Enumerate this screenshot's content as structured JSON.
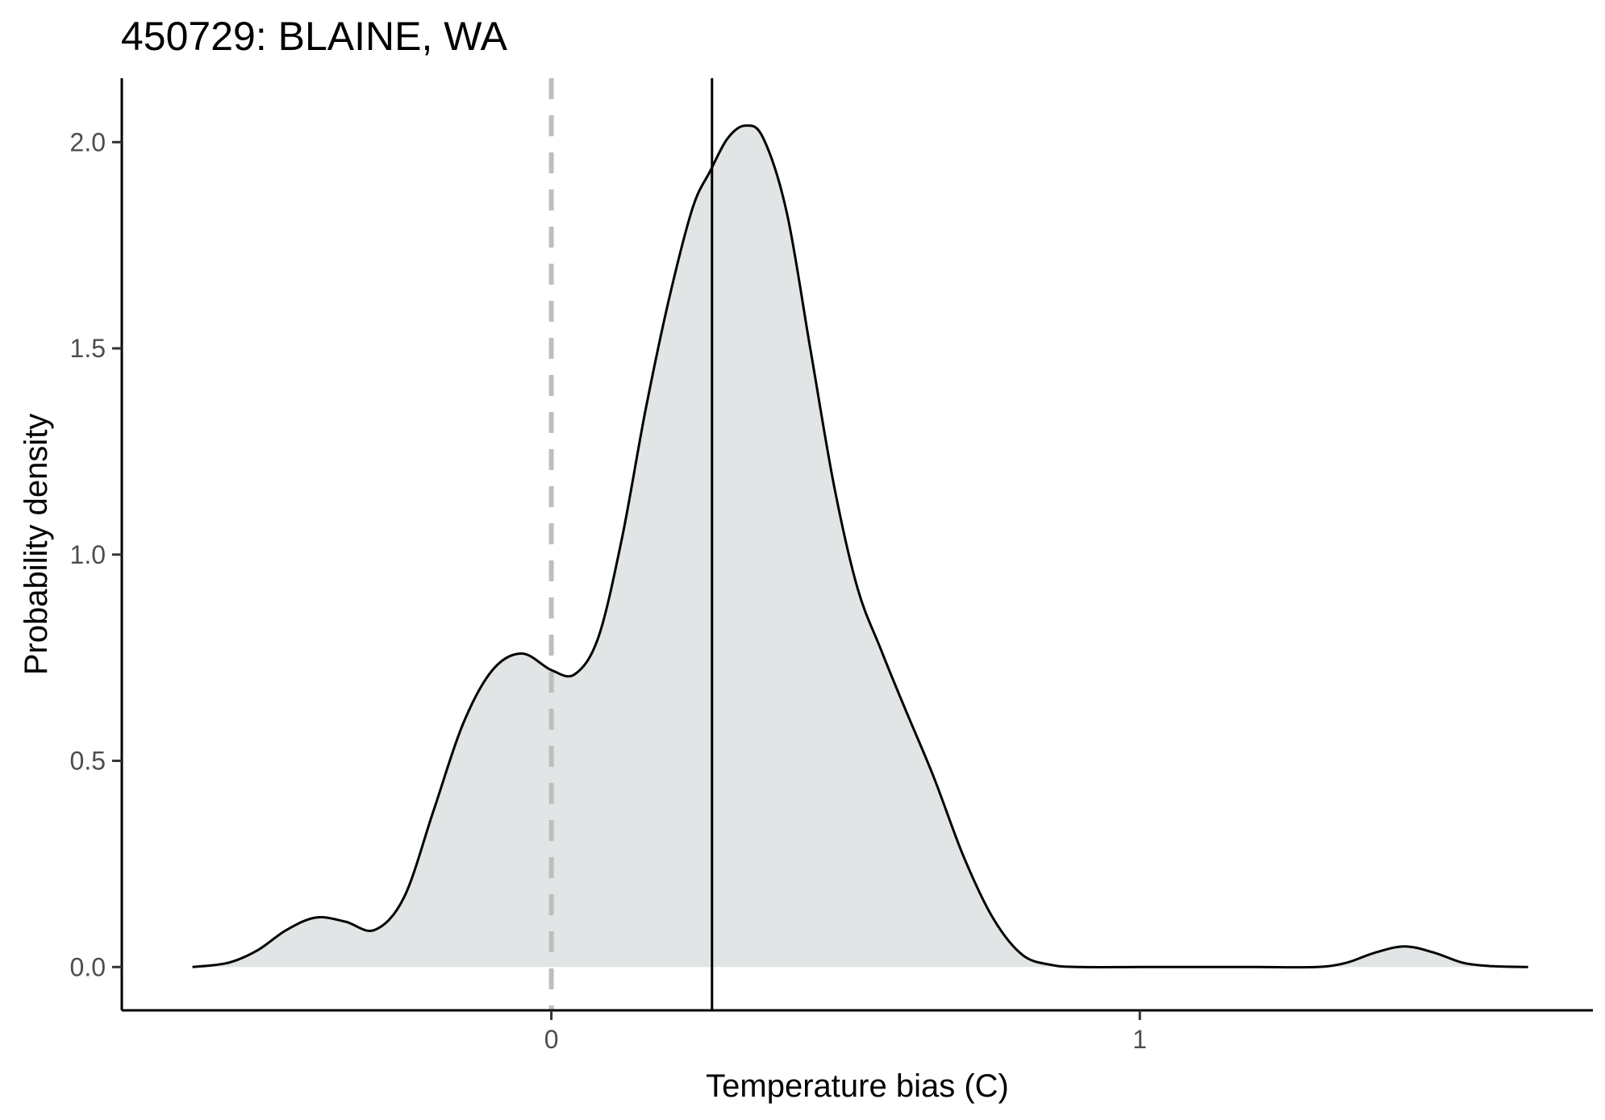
{
  "chart_data": {
    "type": "area",
    "title": "450729: BLAINE, WA",
    "xlabel": "Temperature bias (C)",
    "ylabel": "Probability density",
    "xlim": [
      -0.73,
      1.77
    ],
    "ylim": [
      -0.105,
      2.155
    ],
    "x_ticks": [
      0,
      1
    ],
    "x_tick_labels": [
      "0",
      "1"
    ],
    "y_ticks": [
      0.0,
      0.5,
      1.0,
      1.5,
      2.0
    ],
    "y_tick_labels": [
      "0.0",
      "0.5",
      "1.0",
      "1.5",
      "2.0"
    ],
    "grid": false,
    "legend": "none",
    "reference_lines": [
      {
        "x": 0,
        "style": "dashed",
        "color": "#bebebe"
      },
      {
        "x": 0.273,
        "style": "solid",
        "color": "#000000"
      }
    ],
    "series": [
      {
        "fill": "#e1e5e6",
        "stroke": "#000000",
        "points": [
          [
            -0.61,
            0.0
          ],
          [
            -0.55,
            0.01
          ],
          [
            -0.5,
            0.04
          ],
          [
            -0.45,
            0.09
          ],
          [
            -0.4,
            0.12
          ],
          [
            -0.35,
            0.11
          ],
          [
            -0.3,
            0.09
          ],
          [
            -0.25,
            0.17
          ],
          [
            -0.2,
            0.38
          ],
          [
            -0.15,
            0.59
          ],
          [
            -0.1,
            0.72
          ],
          [
            -0.05,
            0.76
          ],
          [
            0.0,
            0.72
          ],
          [
            0.04,
            0.71
          ],
          [
            0.08,
            0.8
          ],
          [
            0.12,
            1.04
          ],
          [
            0.16,
            1.35
          ],
          [
            0.2,
            1.62
          ],
          [
            0.24,
            1.84
          ],
          [
            0.27,
            1.93
          ],
          [
            0.3,
            2.01
          ],
          [
            0.33,
            2.04
          ],
          [
            0.36,
            2.01
          ],
          [
            0.4,
            1.83
          ],
          [
            0.44,
            1.5
          ],
          [
            0.48,
            1.17
          ],
          [
            0.52,
            0.92
          ],
          [
            0.56,
            0.77
          ],
          [
            0.6,
            0.63
          ],
          [
            0.65,
            0.46
          ],
          [
            0.7,
            0.27
          ],
          [
            0.75,
            0.12
          ],
          [
            0.8,
            0.03
          ],
          [
            0.85,
            0.005
          ],
          [
            0.9,
            0.0
          ],
          [
            1.0,
            0.0
          ],
          [
            1.1,
            0.0
          ],
          [
            1.2,
            0.0
          ],
          [
            1.3,
            0.0
          ],
          [
            1.35,
            0.01
          ],
          [
            1.4,
            0.035
          ],
          [
            1.45,
            0.05
          ],
          [
            1.5,
            0.035
          ],
          [
            1.55,
            0.01
          ],
          [
            1.6,
            0.002
          ],
          [
            1.66,
            0.0
          ]
        ]
      }
    ]
  }
}
